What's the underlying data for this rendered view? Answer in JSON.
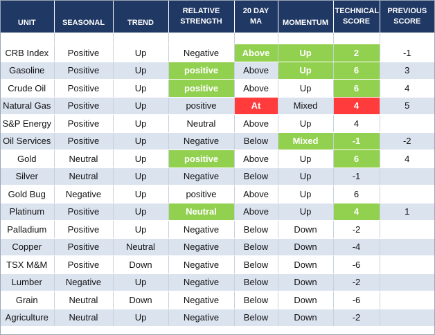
{
  "headers": [
    "UNIT",
    "SEASONAL",
    "TREND",
    "RELATIVE STRENGTH",
    "20 DAY MA",
    "MOMENTUM",
    "TECHNICAL SCORE",
    "PREVIOUS SCORE"
  ],
  "header_lines": [
    [
      "UNIT"
    ],
    [
      "SEASONAL"
    ],
    [
      "TREND"
    ],
    [
      "RELATIVE",
      "STRENGTH"
    ],
    [
      "20 DAY",
      "MA"
    ],
    [
      "MOMENTUM"
    ],
    [
      "TECHNICAL",
      "SCORE"
    ],
    [
      "PREVIOUS",
      "SCORE"
    ]
  ],
  "colors": {
    "header_bg": "#1f3864",
    "green": "#92d050",
    "red": "#ff3b3b",
    "alt_row": "#dbe3ef"
  },
  "rows": [
    {
      "unit": "CRB Index",
      "seasonal": "Positive",
      "trend": "Up",
      "relative_strength": "Negative",
      "ma20": "Above",
      "momentum": "Up",
      "technical_score": "2",
      "previous_score": "-1",
      "highlights": {
        "ma20": "green",
        "momentum": "green",
        "technical_score": "green"
      }
    },
    {
      "unit": "Gasoline",
      "seasonal": "Positive",
      "trend": "Up",
      "relative_strength": "positive",
      "ma20": "Above",
      "momentum": "Up",
      "technical_score": "6",
      "previous_score": "3",
      "highlights": {
        "relative_strength": "green",
        "momentum": "green",
        "technical_score": "green"
      }
    },
    {
      "unit": "Crude Oil",
      "seasonal": "Positive",
      "trend": "Up",
      "relative_strength": "positive",
      "ma20": "Above",
      "momentum": "Up",
      "technical_score": "6",
      "previous_score": "4",
      "highlights": {
        "relative_strength": "green",
        "technical_score": "green"
      }
    },
    {
      "unit": "Natural Gas",
      "seasonal": "Positive",
      "trend": "Up",
      "relative_strength": "positive",
      "ma20": "At",
      "momentum": "Mixed",
      "technical_score": "4",
      "previous_score": "5",
      "highlights": {
        "ma20": "red",
        "technical_score": "red"
      }
    },
    {
      "unit": "S&P Energy",
      "seasonal": "Positive",
      "trend": "Up",
      "relative_strength": "Neutral",
      "ma20": "Above",
      "momentum": "Up",
      "technical_score": "4",
      "previous_score": "",
      "highlights": {}
    },
    {
      "unit": "Oil Services",
      "seasonal": "Positive",
      "trend": "Up",
      "relative_strength": "Negative",
      "ma20": "Below",
      "momentum": "Mixed",
      "technical_score": "-1",
      "previous_score": "-2",
      "highlights": {
        "momentum": "green",
        "technical_score": "green"
      }
    },
    {
      "unit": "Gold",
      "seasonal": "Neutral",
      "trend": "Up",
      "relative_strength": "positive",
      "ma20": "Above",
      "momentum": "Up",
      "technical_score": "6",
      "previous_score": "4",
      "highlights": {
        "relative_strength": "green",
        "technical_score": "green"
      }
    },
    {
      "unit": "Silver",
      "seasonal": "Neutral",
      "trend": "Up",
      "relative_strength": "Negative",
      "ma20": "Below",
      "momentum": "Up",
      "technical_score": "-1",
      "previous_score": "",
      "highlights": {}
    },
    {
      "unit": "Gold Bug",
      "seasonal": "Negative",
      "trend": "Up",
      "relative_strength": "positive",
      "ma20": "Above",
      "momentum": "Up",
      "technical_score": "6",
      "previous_score": "",
      "highlights": {}
    },
    {
      "unit": "Platinum",
      "seasonal": "Positive",
      "trend": "Up",
      "relative_strength": "Neutral",
      "ma20": "Above",
      "momentum": "Up",
      "technical_score": "4",
      "previous_score": "1",
      "highlights": {
        "relative_strength": "green",
        "technical_score": "green"
      }
    },
    {
      "unit": "Palladium",
      "seasonal": "Positive",
      "trend": "Up",
      "relative_strength": "Negative",
      "ma20": "Below",
      "momentum": "Down",
      "technical_score": "-2",
      "previous_score": "",
      "highlights": {}
    },
    {
      "unit": "Copper",
      "seasonal": "Positive",
      "trend": "Neutral",
      "relative_strength": "Negative",
      "ma20": "Below",
      "momentum": "Down",
      "technical_score": "-4",
      "previous_score": "",
      "highlights": {}
    },
    {
      "unit": "TSX M&M",
      "seasonal": "Positive",
      "trend": "Down",
      "relative_strength": "Negative",
      "ma20": "Below",
      "momentum": "Down",
      "technical_score": "-6",
      "previous_score": "",
      "highlights": {}
    },
    {
      "unit": "Lumber",
      "seasonal": "Negative",
      "trend": "Up",
      "relative_strength": "Negative",
      "ma20": "Below",
      "momentum": "Down",
      "technical_score": "-2",
      "previous_score": "",
      "highlights": {}
    },
    {
      "unit": "Grain",
      "seasonal": "Neutral",
      "trend": "Down",
      "relative_strength": "Negative",
      "ma20": "Below",
      "momentum": "Down",
      "technical_score": "-6",
      "previous_score": "",
      "highlights": {}
    },
    {
      "unit": "Agriculture",
      "seasonal": "Neutral",
      "trend": "Up",
      "relative_strength": "Negative",
      "ma20": "Below",
      "momentum": "Down",
      "technical_score": "-2",
      "previous_score": "",
      "highlights": {}
    }
  ]
}
